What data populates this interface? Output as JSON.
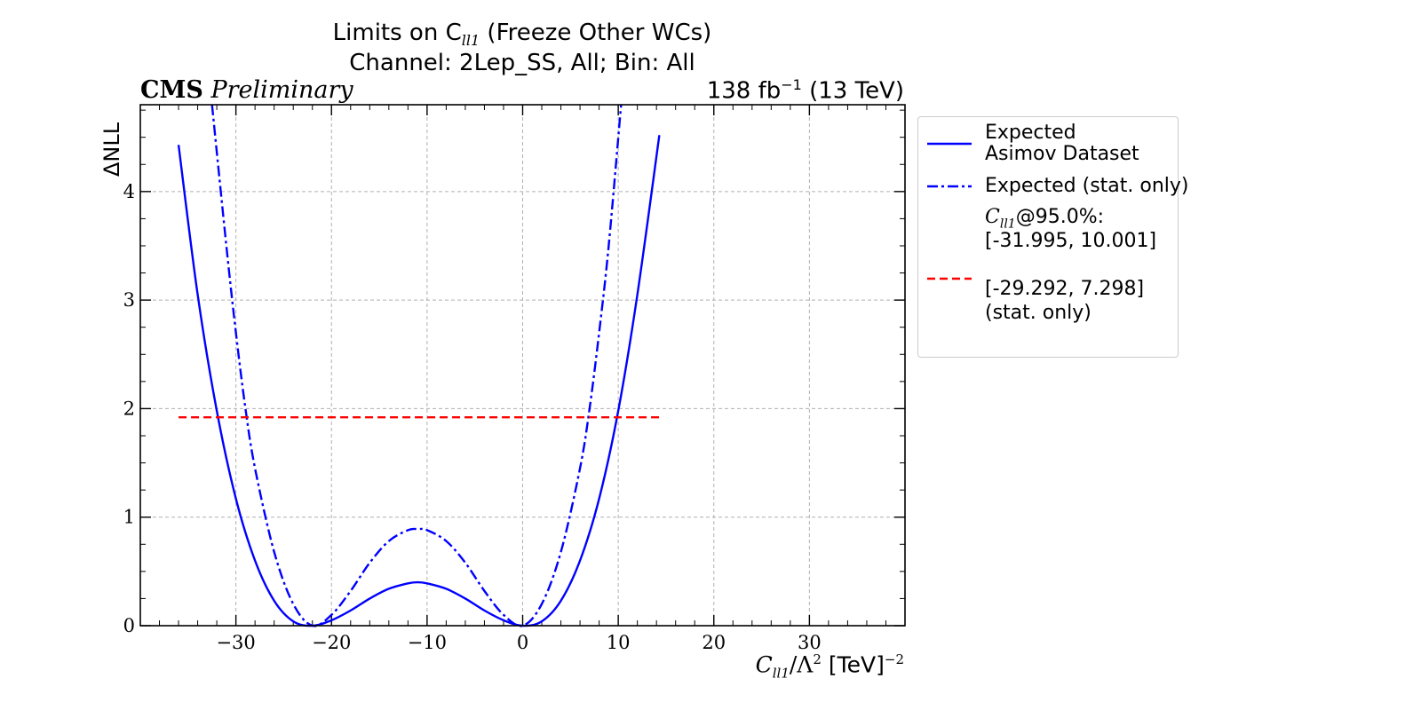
{
  "title_line1": "Limits on C",
  "title_sub": "ll1",
  "title_line1_rest": " (Freeze Other WCs)",
  "title_line2": "Channel: 2Lep_SS, All; Bin: All",
  "cms_label": "CMS",
  "cms_sub": "Preliminary",
  "lumi_value": "138 fb",
  "lumi_exp": "−1",
  "lumi_energy": " (13 TeV)",
  "colors": {
    "blue": "#0000ff",
    "red": "#ff0000",
    "grid": "#b0b0b0"
  },
  "legend": {
    "expected_line1": "Expected",
    "expected_line2": "Asimov Dataset",
    "stat_only": "Expected (stat. only)",
    "cl_label_sym": "C",
    "cl_label_sub": "ll1",
    "cl_label_rest": "@95.0%:",
    "interval_full": "[-31.995, 10.001]",
    "interval_stat": "[-29.292, 7.298]",
    "interval_stat_note": "(stat. only)"
  },
  "chart_data": {
    "type": "line",
    "xlabel": "C_ll1/Λ^2 [TeV]^-2",
    "ylabel": "ΔNLL",
    "xlim": [
      -40,
      40
    ],
    "ylim": [
      0,
      4.8
    ],
    "xticks": [
      -30,
      -20,
      -10,
      0,
      10,
      20,
      30
    ],
    "yticks": [
      0,
      1,
      2,
      3,
      4
    ],
    "grid": true,
    "legend_position": "outside-right",
    "series": [
      {
        "name": "Expected Asimov Dataset",
        "style": "solid",
        "color": "#0000ff",
        "x": [
          -36,
          -34,
          -32,
          -30,
          -28,
          -26,
          -24,
          -22,
          -20,
          -18,
          -16,
          -14,
          -12,
          -11,
          -10,
          -8,
          -6,
          -4,
          -2,
          0,
          2,
          4,
          6,
          8,
          10,
          12,
          14.3
        ],
        "y": [
          4.43,
          3.05,
          1.98,
          1.17,
          0.6,
          0.23,
          0.04,
          0.0,
          0.05,
          0.14,
          0.25,
          0.34,
          0.39,
          0.4,
          0.39,
          0.34,
          0.25,
          0.14,
          0.05,
          0.0,
          0.04,
          0.23,
          0.6,
          1.17,
          1.98,
          3.05,
          4.52
        ]
      },
      {
        "name": "Expected (stat. only)",
        "style": "dashdot",
        "color": "#0000ff",
        "x": [
          -32.5,
          -31,
          -30,
          -29,
          -28,
          -26,
          -24,
          -22,
          -20,
          -18,
          -16,
          -14,
          -12,
          -11,
          -10,
          -8,
          -6,
          -4,
          -2,
          0,
          2,
          4,
          6,
          7,
          8,
          9,
          10.3
        ],
        "y": [
          4.8,
          3.5,
          2.7,
          2.0,
          1.45,
          0.68,
          0.2,
          0.0,
          0.1,
          0.32,
          0.58,
          0.78,
          0.88,
          0.89,
          0.88,
          0.78,
          0.58,
          0.32,
          0.1,
          0.0,
          0.2,
          0.68,
          1.45,
          2.0,
          2.7,
          3.5,
          4.8
        ]
      },
      {
        "name": "95.0% CL threshold",
        "style": "dashed",
        "color": "#ff0000",
        "x": [
          -36,
          14.3
        ],
        "y": [
          1.92,
          1.92
        ]
      }
    ]
  }
}
